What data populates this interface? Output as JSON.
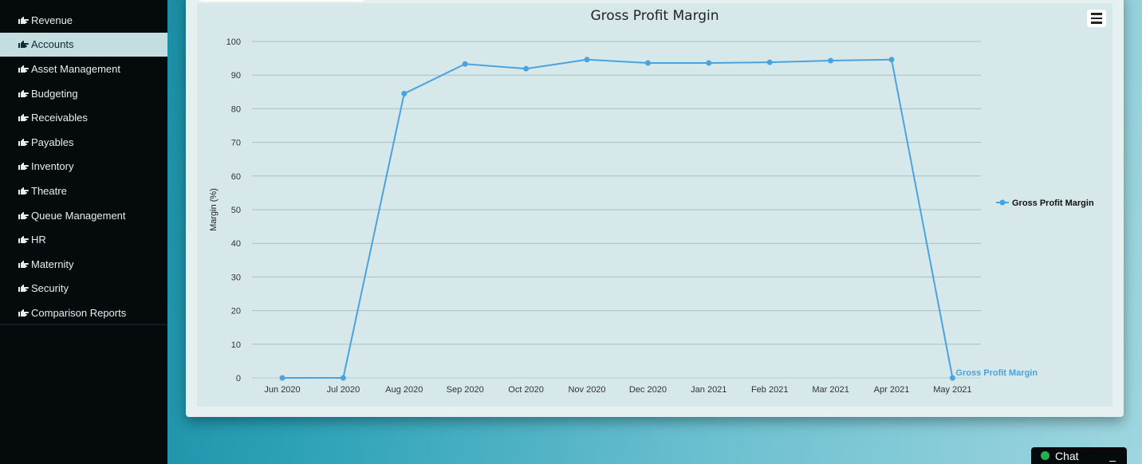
{
  "sidebar": {
    "items": [
      {
        "label": "Revenue"
      },
      {
        "label": "Accounts"
      },
      {
        "label": "Asset Management"
      },
      {
        "label": "Budgeting"
      },
      {
        "label": "Receivables"
      },
      {
        "label": "Payables"
      },
      {
        "label": "Inventory"
      },
      {
        "label": "Theatre"
      },
      {
        "label": "Queue Management"
      },
      {
        "label": "HR"
      },
      {
        "label": "Maternity"
      },
      {
        "label": "Security"
      },
      {
        "label": "Comparison Reports"
      }
    ],
    "active_index": 1,
    "item_icon": "pointing-hand-icon"
  },
  "chart_menu": {
    "icon": "hamburger-menu-icon"
  },
  "chat": {
    "label": "Chat",
    "minimize_label": "_",
    "status_color": "#22b14c"
  },
  "colors": {
    "series": "#4aa3df",
    "active_item_bg": "#c4dde0"
  },
  "chart_data": {
    "type": "line",
    "title": "Gross Profit Margin",
    "xlabel": "",
    "ylabel": "Margin (%)",
    "ylim": [
      0,
      100
    ],
    "yticks": [
      0,
      10,
      20,
      30,
      40,
      50,
      60,
      70,
      80,
      90,
      100
    ],
    "grid": true,
    "legend": "right",
    "categories": [
      "Jun 2020",
      "Jul 2020",
      "Aug 2020",
      "Sep 2020",
      "Oct 2020",
      "Nov 2020",
      "Dec 2020",
      "Jan 2021",
      "Feb 2021",
      "Mar 2021",
      "Apr 2021",
      "May 2021"
    ],
    "series": [
      {
        "name": "Gross Profit Margin",
        "color": "#4aa3df",
        "values": [
          0,
          0,
          84.5,
          93.3,
          91.9,
          94.6,
          93.6,
          93.6,
          93.8,
          94.3,
          94.6,
          0
        ],
        "end_label": "Gross Profit Margin"
      }
    ]
  }
}
